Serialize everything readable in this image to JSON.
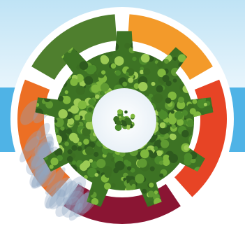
{
  "illustration": {
    "subject": "gear-made-of-trees",
    "colors": {
      "sky_top": "#cfe9f7",
      "sky_band": "#4fb3e6",
      "ring": "#ffffff",
      "segment_green": "#4f7f2e",
      "segment_orange": "#f39a2a",
      "segment_red": "#e74425",
      "segment_crimson": "#8a1533",
      "segment_left_orange": "#ec6f24",
      "foliage_dark": "#2e5a1e",
      "foliage_mid": "#4c8b2b",
      "foliage_light": "#7fb83e",
      "shadow": "#8fa6c4"
    }
  }
}
